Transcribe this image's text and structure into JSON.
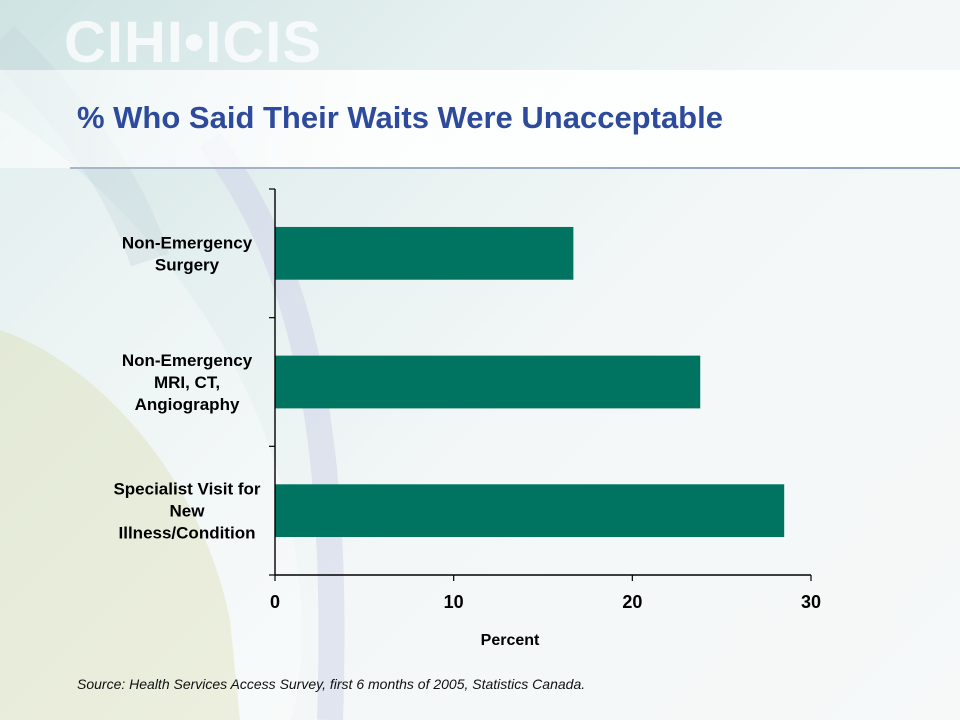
{
  "logo": {
    "text": "CIHI•ICIS"
  },
  "title": "% Who Said Their Waits Were Unacceptable",
  "source": "Source: Health Services Access Survey, first 6 months of 2005, Statistics Canada.",
  "colors": {
    "bar": "#007460",
    "title": "#2e4a9c"
  },
  "chart_data": {
    "type": "bar",
    "orientation": "horizontal",
    "categories": [
      [
        "Non-Emergency",
        "Surgery"
      ],
      [
        "Non-Emergency",
        "MRI, CT,",
        "Angiography"
      ],
      [
        "Specialist Visit for",
        "New",
        "Illness/Condition"
      ]
    ],
    "values": [
      16.7,
      23.8,
      28.5
    ],
    "xlabel": "Percent",
    "xlim": [
      0,
      30
    ],
    "xticks": [
      0,
      10,
      20,
      30
    ],
    "grid": false,
    "legend": "none"
  }
}
